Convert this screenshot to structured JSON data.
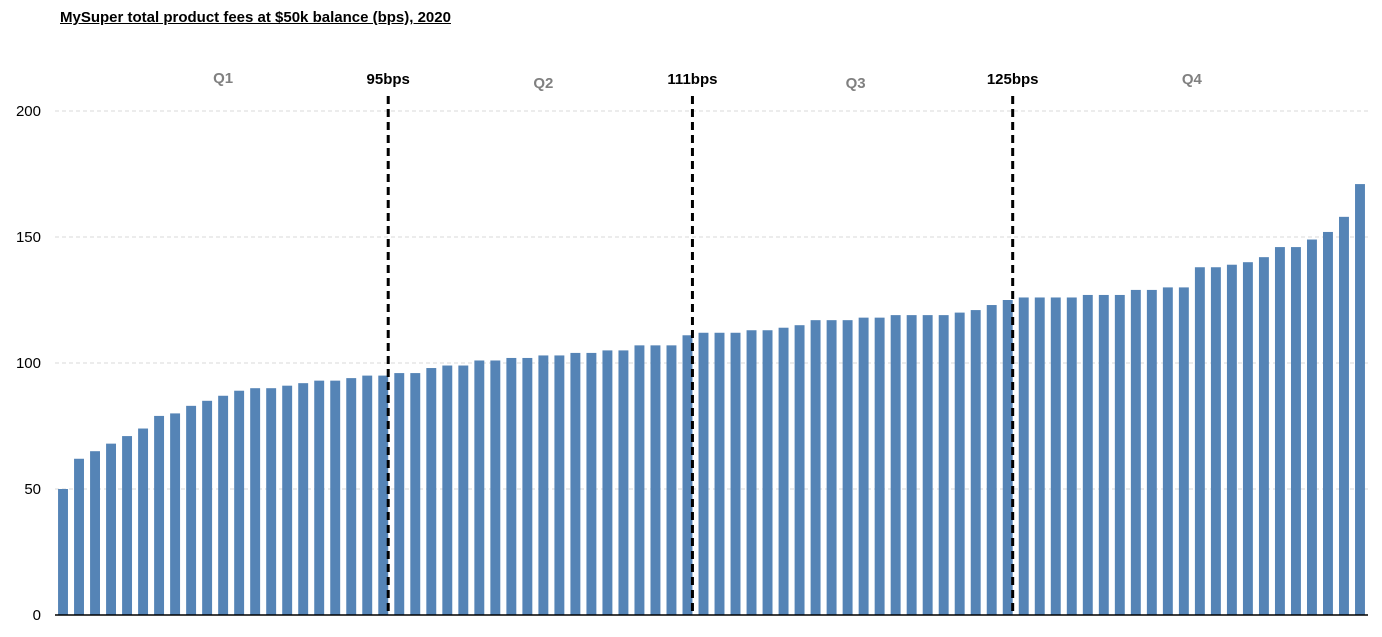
{
  "chart_data": {
    "type": "bar",
    "title": "MySuper total product fees at $50k balance (bps), 2020",
    "xlabel": "",
    "ylabel": "",
    "ylim": [
      0,
      200
    ],
    "yticks": [
      0,
      50,
      100,
      150,
      200
    ],
    "grid": "horizontal dashed",
    "bar_color": "#5584b6",
    "values": [
      50,
      62,
      65,
      68,
      71,
      74,
      79,
      80,
      83,
      85,
      87,
      89,
      90,
      90,
      91,
      92,
      93,
      93,
      94,
      95,
      95,
      96,
      96,
      98,
      99,
      99,
      101,
      101,
      102,
      102,
      103,
      103,
      104,
      104,
      105,
      105,
      107,
      107,
      107,
      111,
      112,
      112,
      112,
      113,
      113,
      114,
      115,
      117,
      117,
      117,
      118,
      118,
      119,
      119,
      119,
      119,
      120,
      121,
      123,
      125,
      126,
      126,
      126,
      126,
      127,
      127,
      127,
      129,
      129,
      130,
      130,
      138,
      138,
      139,
      140,
      142,
      146,
      146,
      149,
      152,
      158,
      171
    ],
    "markers": [
      {
        "after_index": 20,
        "label": "95bps"
      },
      {
        "after_index": 39,
        "label": "111bps"
      },
      {
        "after_index": 59,
        "label": "125bps"
      }
    ],
    "quartiles": [
      {
        "label": "Q1",
        "from": 0,
        "to": 20
      },
      {
        "label": "Q2",
        "from": 21,
        "to": 39
      },
      {
        "label": "Q3",
        "from": 40,
        "to": 59
      },
      {
        "label": "Q4",
        "from": 60,
        "to": 81
      }
    ]
  }
}
